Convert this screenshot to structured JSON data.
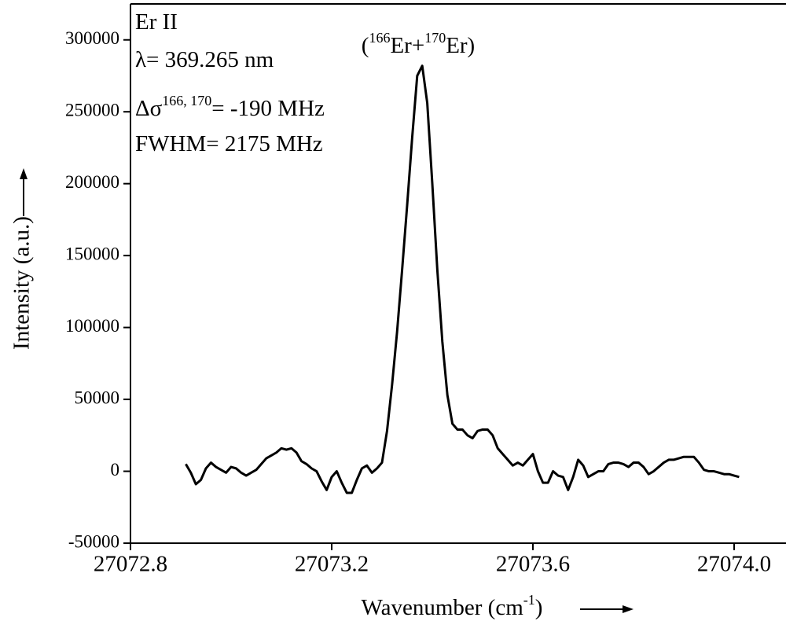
{
  "chart_data": {
    "type": "line",
    "x_label": [
      "Wavenumber (cm",
      "-1",
      ")"
    ],
    "y_label": "Intensity (a.u.)",
    "annotations": [
      [
        "Er II"
      ],
      [
        "λ= 369.265 nm"
      ],
      [
        "Δσ",
        "166, 170",
        "= -190 MHz"
      ],
      [
        "FWHM= 2175 MHz"
      ]
    ],
    "peak_label": [
      "(",
      "166",
      "Er+",
      "170",
      "Er)"
    ],
    "x": [
      27072.91,
      27072.92,
      27072.93,
      27072.94,
      27072.95,
      27072.96,
      27072.97,
      27072.98,
      27072.99,
      27073.0,
      27073.01,
      27073.02,
      27073.03,
      27073.04,
      27073.05,
      27073.06,
      27073.07,
      27073.08,
      27073.09,
      27073.1,
      27073.11,
      27073.12,
      27073.13,
      27073.14,
      27073.15,
      27073.16,
      27073.17,
      27073.18,
      27073.19,
      27073.2,
      27073.21,
      27073.22,
      27073.23,
      27073.24,
      27073.25,
      27073.26,
      27073.27,
      27073.28,
      27073.29,
      27073.3,
      27073.31,
      27073.32,
      27073.33,
      27073.34,
      27073.35,
      27073.36,
      27073.37,
      27073.38,
      27073.39,
      27073.4,
      27073.41,
      27073.42,
      27073.43,
      27073.44,
      27073.45,
      27073.46,
      27073.47,
      27073.48,
      27073.49,
      27073.5,
      27073.51,
      27073.52,
      27073.53,
      27073.54,
      27073.55,
      27073.56,
      27073.57,
      27073.58,
      27073.59,
      27073.6,
      27073.61,
      27073.62,
      27073.63,
      27073.64,
      27073.65,
      27073.66,
      27073.67,
      27073.68,
      27073.69,
      27073.7,
      27073.71,
      27073.72,
      27073.73,
      27073.74,
      27073.75,
      27073.76,
      27073.77,
      27073.78,
      27073.79,
      27073.8,
      27073.81,
      27073.82,
      27073.83,
      27073.84,
      27073.85,
      27073.86,
      27073.87,
      27073.88,
      27073.89,
      27073.9,
      27073.91,
      27073.92,
      27073.93,
      27073.94,
      27073.95,
      27073.96,
      27073.97,
      27073.98,
      27073.99,
      27074.0,
      27074.01
    ],
    "series": [
      {
        "color": "#000000",
        "values": [
          5000,
          -1000,
          -9000,
          -6000,
          2000,
          6000,
          3000,
          1000,
          -1000,
          3000,
          2000,
          -1000,
          -3000,
          -1000,
          1000,
          5000,
          9000,
          11000,
          13000,
          16000,
          15000,
          16000,
          13000,
          7000,
          5000,
          2000,
          0,
          -7000,
          -13000,
          -4000,
          0,
          -8000,
          -15000,
          -15000,
          -6000,
          2000,
          4000,
          -1000,
          2000,
          6000,
          28000,
          60000,
          97000,
          140000,
          185000,
          232000,
          275000,
          282000,
          256000,
          200000,
          140000,
          90000,
          53000,
          33000,
          29000,
          29000,
          25000,
          23000,
          28000,
          29000,
          29000,
          25000,
          16000,
          12000,
          8000,
          4000,
          6000,
          4000,
          8000,
          12000,
          0,
          -8000,
          -8000,
          0,
          -3000,
          -4000,
          -13000,
          -4000,
          8000,
          4000,
          -4000,
          -2000,
          0,
          0,
          5000,
          6000,
          6000,
          5000,
          3000,
          6000,
          6000,
          3000,
          -2000,
          0,
          3000,
          6000,
          8000,
          8000,
          9000,
          10000,
          10000,
          10000,
          6000,
          1000,
          0,
          0,
          -1000,
          -2000,
          -2000,
          -3000,
          -4000
        ]
      }
    ],
    "xlim": [
      27072.8,
      27074.1
    ],
    "ylim": [
      -50000,
      325000
    ],
    "xticks": [
      27072.8,
      27073.2,
      27073.6,
      {
        "value": 27074,
        "label": "27074.0"
      }
    ],
    "yticks": [
      -50000,
      0,
      50000,
      100000,
      150000,
      200000,
      250000,
      300000
    ]
  }
}
